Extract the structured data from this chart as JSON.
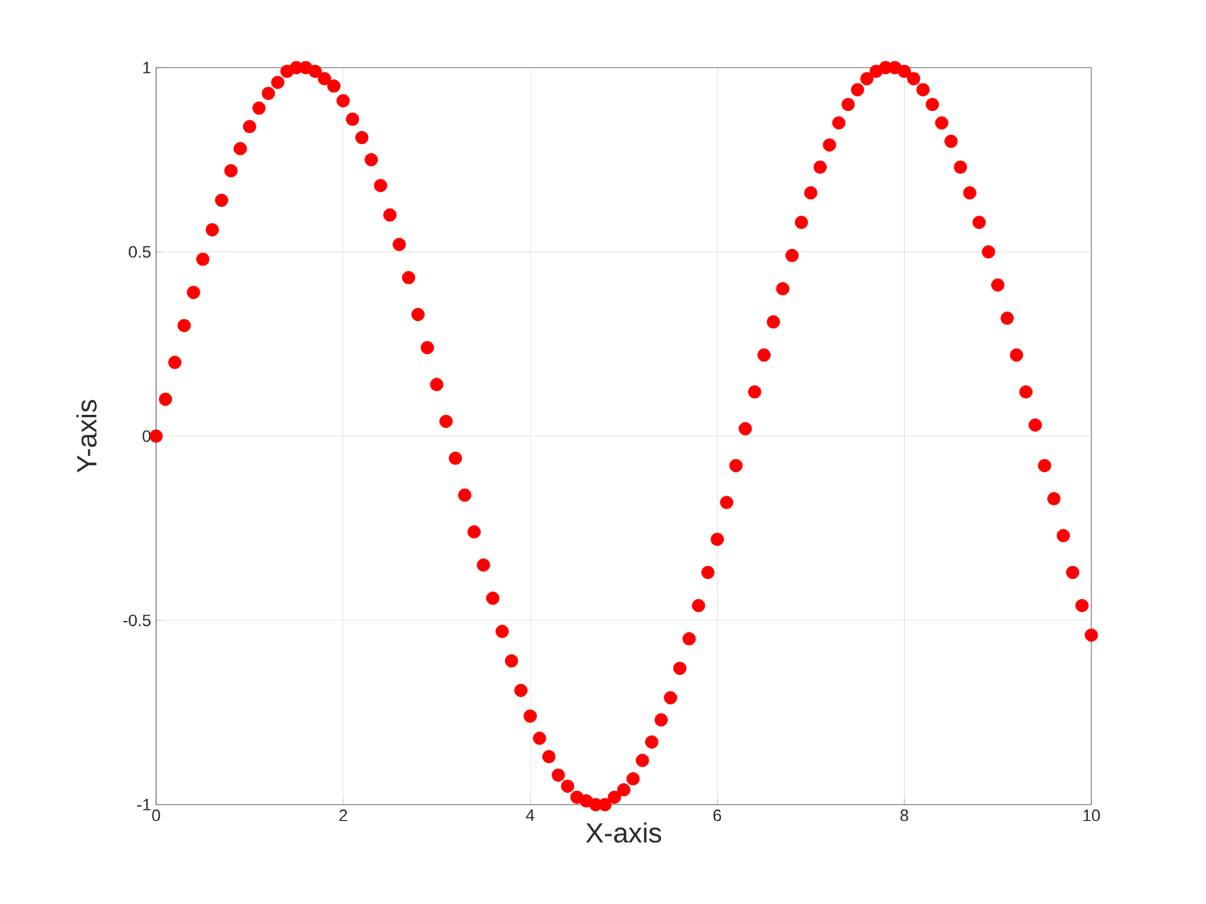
{
  "chart_data": {
    "type": "scatter",
    "xlabel": "X-axis",
    "ylabel": "Y-axis",
    "xlim": [
      0,
      10
    ],
    "ylim": [
      -1,
      1
    ],
    "xticks": [
      0,
      2,
      4,
      6,
      8,
      10
    ],
    "yticks": [
      -1,
      -0.5,
      0,
      0.5,
      1
    ],
    "grid": true,
    "marker": "circle",
    "series": [
      {
        "color": "#ff0000",
        "x": [
          0,
          0.1,
          0.2,
          0.3,
          0.4,
          0.5,
          0.6,
          0.7,
          0.8,
          0.9,
          1,
          1.1,
          1.2,
          1.3,
          1.4,
          1.5,
          1.6,
          1.7,
          1.8,
          1.9,
          2,
          2.1,
          2.2,
          2.3,
          2.4,
          2.5,
          2.6,
          2.7,
          2.8,
          2.9,
          3,
          3.1,
          3.2,
          3.3,
          3.4,
          3.5,
          3.6,
          3.7,
          3.8,
          3.9,
          4,
          4.1,
          4.2,
          4.3,
          4.4,
          4.5,
          4.6,
          4.7,
          4.8,
          4.9,
          5,
          5.1,
          5.2,
          5.3,
          5.4,
          5.5,
          5.6,
          5.7,
          5.8,
          5.9,
          6,
          6.1,
          6.2,
          6.3,
          6.4,
          6.5,
          6.6,
          6.7,
          6.8,
          6.9,
          7,
          7.1,
          7.2,
          7.3,
          7.4,
          7.5,
          7.6,
          7.7,
          7.8,
          7.9,
          8,
          8.1,
          8.2,
          8.3,
          8.4,
          8.5,
          8.6,
          8.7,
          8.8,
          8.9,
          9,
          9.1,
          9.2,
          9.3,
          9.4,
          9.5,
          9.6,
          9.7,
          9.8,
          9.9,
          10
        ],
        "values": [
          0,
          0.1,
          0.2,
          0.3,
          0.39,
          0.48,
          0.56,
          0.64,
          0.72,
          0.78,
          0.84,
          0.89,
          0.93,
          0.96,
          0.99,
          1.0,
          1.0,
          0.99,
          0.97,
          0.95,
          0.91,
          0.86,
          0.81,
          0.75,
          0.68,
          0.6,
          0.52,
          0.43,
          0.33,
          0.24,
          0.14,
          0.04,
          -0.06,
          -0.16,
          -0.26,
          -0.35,
          -0.44,
          -0.53,
          -0.61,
          -0.69,
          -0.76,
          -0.82,
          -0.87,
          -0.92,
          -0.95,
          -0.98,
          -0.99,
          -1.0,
          -1.0,
          -0.98,
          -0.96,
          -0.93,
          -0.88,
          -0.83,
          -0.77,
          -0.71,
          -0.63,
          -0.55,
          -0.46,
          -0.37,
          -0.28,
          -0.18,
          -0.08,
          0.02,
          0.12,
          0.22,
          0.31,
          0.4,
          0.49,
          0.58,
          0.66,
          0.73,
          0.79,
          0.85,
          0.9,
          0.94,
          0.97,
          0.99,
          1.0,
          1.0,
          0.99,
          0.97,
          0.94,
          0.9,
          0.85,
          0.8,
          0.73,
          0.66,
          0.58,
          0.5,
          0.41,
          0.32,
          0.22,
          0.12,
          0.03,
          -0.08,
          -0.17,
          -0.27,
          -0.37,
          -0.46,
          -0.54
        ]
      }
    ]
  }
}
